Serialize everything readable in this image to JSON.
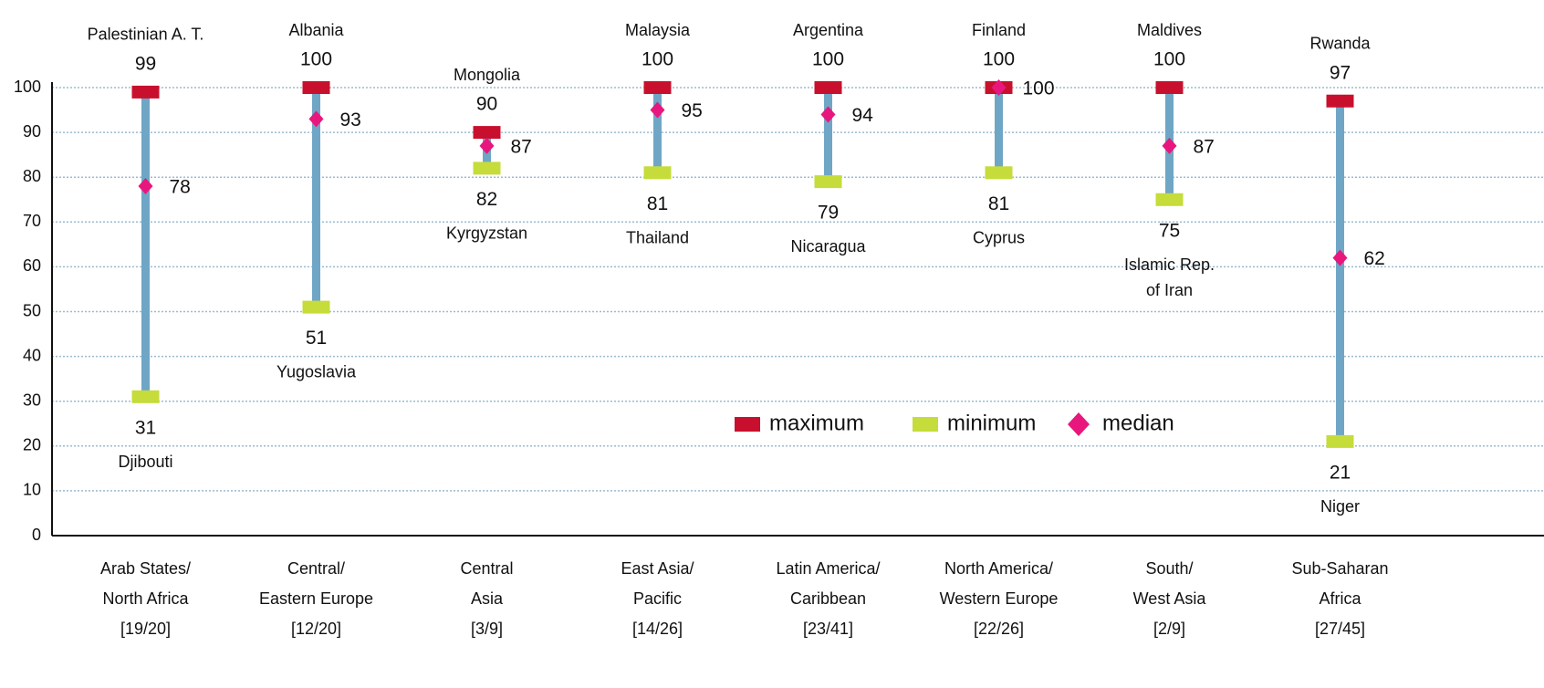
{
  "chart_data": {
    "type": "range",
    "categories": [
      [
        "Arab States/",
        "North Africa",
        "[19/20]"
      ],
      [
        "Central/",
        "Eastern Europe",
        "[12/20]"
      ],
      [
        "Central",
        "Asia",
        "[3/9]"
      ],
      [
        "East Asia/",
        "Pacific",
        "[14/26]"
      ],
      [
        "Latin America/",
        "Caribbean",
        "[23/41]"
      ],
      [
        "North America/",
        "Western Europe",
        "[22/26]"
      ],
      [
        "South/",
        "West Asia",
        "[2/9]"
      ],
      [
        "Sub-Saharan",
        "Africa",
        "[27/45]"
      ]
    ],
    "series": [
      {
        "name": "maximum",
        "color": "#c8102e",
        "values": [
          99,
          100,
          90,
          100,
          100,
          100,
          100,
          97
        ],
        "countries": [
          "Palestinian A. T.",
          "Albania",
          "Mongolia",
          "Malaysia",
          "Argentina",
          "Finland",
          "Maldives",
          "Rwanda"
        ]
      },
      {
        "name": "minimum",
        "color": "#c5dc3a",
        "values": [
          31,
          51,
          82,
          81,
          79,
          81,
          75,
          21
        ],
        "countries": [
          [
            "Djibouti"
          ],
          [
            "Yugoslavia"
          ],
          [
            "Kyrgyzstan"
          ],
          [
            "Thailand"
          ],
          [
            "Nicaragua"
          ],
          [
            "Cyprus"
          ],
          [
            "Islamic Rep.",
            "of Iran"
          ],
          [
            "Niger"
          ]
        ]
      },
      {
        "name": "median",
        "color": "#e8177d",
        "values": [
          78,
          93,
          87,
          95,
          94,
          100,
          87,
          62
        ]
      }
    ],
    "range_color": "#6fa6c6",
    "ylim": [
      0,
      100
    ],
    "yticks": [
      0,
      10,
      20,
      30,
      40,
      50,
      60,
      70,
      80,
      90,
      100
    ],
    "grid": true
  }
}
